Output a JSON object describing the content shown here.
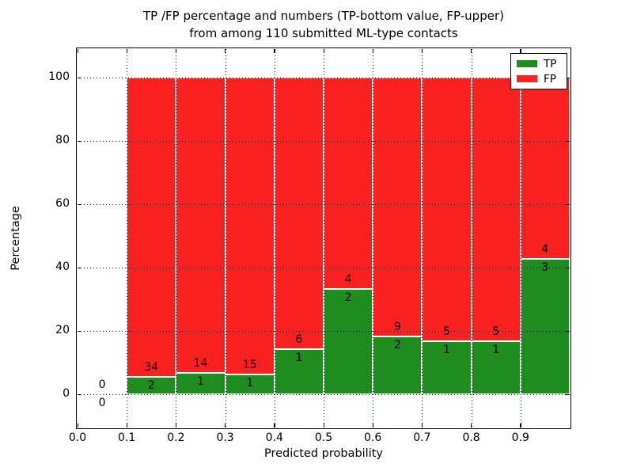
{
  "figure": {
    "title_line1": "TP /FP percentage and numbers (TP-bottom value, FP-upper)",
    "title_line2": "from among 110 submitted ML-type contacts",
    "xlabel": "Predicted probability",
    "ylabel": "Percentage"
  },
  "legend": {
    "items": [
      {
        "label": "TP",
        "color": "#1e8c1e"
      },
      {
        "label": "FP",
        "color": "#fb2121"
      }
    ]
  },
  "chart_data": {
    "type": "bar",
    "stacked": true,
    "title": "TP /FP percentage and numbers (TP-bottom value, FP-upper)\nfrom among 110 submitted ML-type contacts",
    "xlabel": "Predicted probability",
    "ylabel": "Percentage",
    "xlim": [
      0.0,
      1.0
    ],
    "ylim": [
      -10.5,
      109
    ],
    "x_ticks": [
      0.0,
      0.1,
      0.2,
      0.3,
      0.4,
      0.5,
      0.6,
      0.7,
      0.8,
      0.9
    ],
    "x_tick_labels": [
      "0.0",
      "0.1",
      "0.2",
      "0.3",
      "0.4",
      "0.5",
      "0.6",
      "0.7",
      "0.8",
      "0.9"
    ],
    "y_ticks": [
      0,
      20,
      40,
      60,
      80,
      100
    ],
    "grid": true,
    "legend_position": "upper right",
    "bar_width": 0.1,
    "total_contacts": 110,
    "colors": {
      "tp": "#1e8c1e",
      "fp": "#fb2121",
      "bar_edge": "#ffffff"
    },
    "bins": [
      {
        "x_start": 0.0,
        "x_end": 0.1,
        "tp_count": 0,
        "fp_count": 0,
        "tp_percent": 0,
        "fp_percent": 0,
        "has_bar": false
      },
      {
        "x_start": 0.1,
        "x_end": 0.2,
        "tp_count": 2,
        "fp_count": 34,
        "tp_percent": 5.56,
        "fp_percent": 94.44,
        "has_bar": true
      },
      {
        "x_start": 0.2,
        "x_end": 0.3,
        "tp_count": 1,
        "fp_count": 14,
        "tp_percent": 6.67,
        "fp_percent": 93.33,
        "has_bar": true
      },
      {
        "x_start": 0.3,
        "x_end": 0.4,
        "tp_count": 1,
        "fp_count": 15,
        "tp_percent": 6.25,
        "fp_percent": 93.75,
        "has_bar": true
      },
      {
        "x_start": 0.4,
        "x_end": 0.5,
        "tp_count": 1,
        "fp_count": 6,
        "tp_percent": 14.29,
        "fp_percent": 85.71,
        "has_bar": true
      },
      {
        "x_start": 0.5,
        "x_end": 0.6,
        "tp_count": 2,
        "fp_count": 4,
        "tp_percent": 33.33,
        "fp_percent": 66.67,
        "has_bar": true
      },
      {
        "x_start": 0.6,
        "x_end": 0.7,
        "tp_count": 2,
        "fp_count": 9,
        "tp_percent": 18.18,
        "fp_percent": 81.82,
        "has_bar": true
      },
      {
        "x_start": 0.7,
        "x_end": 0.8,
        "tp_count": 1,
        "fp_count": 5,
        "tp_percent": 16.67,
        "fp_percent": 83.33,
        "has_bar": true
      },
      {
        "x_start": 0.8,
        "x_end": 0.9,
        "tp_count": 1,
        "fp_count": 5,
        "tp_percent": 16.67,
        "fp_percent": 83.33,
        "has_bar": true
      },
      {
        "x_start": 0.9,
        "x_end": 1.0,
        "tp_count": 3,
        "fp_count": 4,
        "tp_percent": 42.86,
        "fp_percent": 57.14,
        "has_bar": true
      }
    ]
  }
}
